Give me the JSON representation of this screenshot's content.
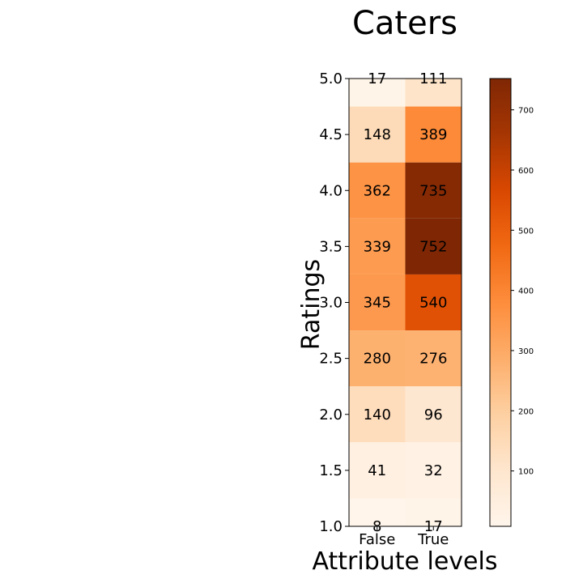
{
  "chart_data": {
    "type": "heatmap",
    "title": "Caters",
    "xlabel": "Attribute levels",
    "ylabel": "Ratings",
    "x_categories": [
      "False",
      "True"
    ],
    "y_categories": [
      "5.0",
      "4.5",
      "4.0",
      "3.5",
      "3.0",
      "2.5",
      "2.0",
      "1.5",
      "1.0"
    ],
    "values": [
      [
        17,
        111
      ],
      [
        148,
        389
      ],
      [
        362,
        735
      ],
      [
        339,
        752
      ],
      [
        345,
        540
      ],
      [
        280,
        276
      ],
      [
        140,
        96
      ],
      [
        41,
        32
      ],
      [
        8,
        17
      ]
    ],
    "colormap": "Oranges",
    "colormap_stops": [
      "#fff5eb",
      "#fee6ce",
      "#fdd0a2",
      "#fdae6b",
      "#fd8d3c",
      "#f16913",
      "#d94801",
      "#a63603",
      "#7f2704"
    ],
    "color_range": [
      8,
      752
    ],
    "colorbar_ticks": [
      100,
      200,
      300,
      400,
      500,
      600,
      700
    ],
    "colorbar_tick_labels": [
      "100",
      "200",
      "300",
      "400",
      "500",
      "600",
      "700"
    ],
    "grid": false
  }
}
